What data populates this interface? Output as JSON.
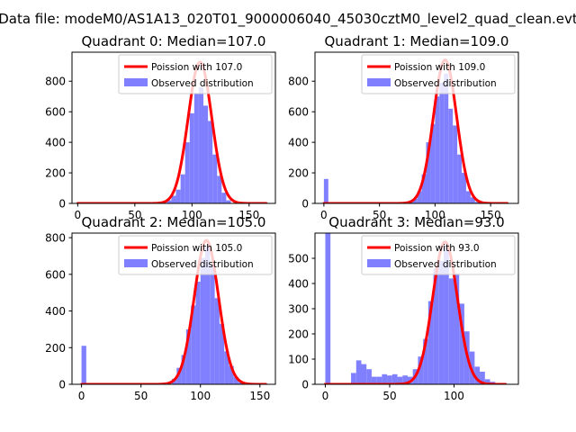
{
  "figure_title": "Data file: modeM0/AS1A13_020T01_9000006040_45030cztM0_level2_quad_clean.evt",
  "colors": {
    "observed": "#8080ff",
    "poisson": "#ff0000"
  },
  "chart_data": [
    {
      "type": "bar",
      "title": "Quadrant 0: Median=107.0",
      "median": 107.0,
      "xlim": [
        -5,
        173
      ],
      "ylim": [
        0,
        990
      ],
      "xticks": [
        0,
        50,
        100,
        150
      ],
      "yticks": [
        0,
        200,
        400,
        600,
        800
      ],
      "legend": {
        "placement": "top-right",
        "entries": [
          "Poission with 107.0",
          "Observed distribution"
        ]
      },
      "series": [
        {
          "name": "Poission with 107.0",
          "type": "line",
          "mean": 107.0,
          "peak": 925,
          "x_range": [
            0,
            165
          ]
        },
        {
          "name": "Observed distribution",
          "type": "hist",
          "bin_width": 4,
          "bin_starts": [
            78,
            82,
            86,
            90,
            94,
            98,
            102,
            106,
            110,
            114,
            118,
            122,
            126,
            130
          ],
          "counts": [
            20,
            50,
            90,
            190,
            400,
            590,
            720,
            760,
            640,
            540,
            320,
            180,
            70,
            20
          ]
        }
      ]
    },
    {
      "type": "bar",
      "title": "Quadrant 1: Median=109.0",
      "median": 109.0,
      "xlim": [
        -8,
        175
      ],
      "ylim": [
        0,
        990
      ],
      "xticks": [
        0,
        50,
        100,
        150
      ],
      "yticks": [
        0,
        200,
        400,
        600,
        800
      ],
      "legend": {
        "placement": "top-right",
        "entries": [
          "Poission with 109.0",
          "Observed distribution"
        ]
      },
      "series": [
        {
          "name": "Poission with 109.0",
          "type": "line",
          "mean": 109.0,
          "peak": 940,
          "x_range": [
            0,
            165
          ]
        },
        {
          "name": "Observed distribution",
          "type": "hist",
          "bin_width": 4,
          "bin_starts": [
            0,
            76,
            80,
            84,
            88,
            92,
            96,
            100,
            104,
            108,
            112,
            116,
            120,
            124,
            128,
            132,
            136
          ],
          "counts": [
            160,
            10,
            30,
            80,
            190,
            400,
            520,
            700,
            790,
            850,
            620,
            510,
            320,
            200,
            80,
            40,
            10
          ]
        }
      ]
    },
    {
      "type": "bar",
      "title": "Quadrant 2: Median=105.0",
      "median": 105.0,
      "xlim": [
        -8,
        163
      ],
      "ylim": [
        0,
        825
      ],
      "xticks": [
        0,
        50,
        100,
        150
      ],
      "yticks": [
        0,
        200,
        400,
        600,
        800
      ],
      "legend": {
        "placement": "top-right",
        "entries": [
          "Poission with 105.0",
          "Observed distribution"
        ]
      },
      "series": [
        {
          "name": "Poission with 105.0",
          "type": "line",
          "mean": 105.0,
          "peak": 785,
          "x_range": [
            0,
            155
          ]
        },
        {
          "name": "Observed distribution",
          "type": "hist",
          "bin_width": 4,
          "bin_starts": [
            0,
            76,
            80,
            84,
            88,
            92,
            96,
            100,
            104,
            108,
            112,
            116,
            120,
            124,
            128,
            132
          ],
          "counts": [
            210,
            30,
            90,
            160,
            300,
            430,
            560,
            690,
            750,
            650,
            470,
            330,
            180,
            100,
            40,
            10
          ]
        }
      ]
    },
    {
      "type": "bar",
      "title": "Quadrant 3: Median=93.0",
      "median": 93.0,
      "xlim": [
        -8,
        150
      ],
      "ylim": [
        0,
        600
      ],
      "xticks": [
        0,
        50,
        100
      ],
      "yticks": [
        0,
        100,
        200,
        300,
        400,
        500
      ],
      "legend": {
        "placement": "top-right",
        "entries": [
          "Poission with 93.0",
          "Observed distribution"
        ]
      },
      "series": [
        {
          "name": "Poission with 93.0",
          "type": "line",
          "mean": 93.0,
          "peak": 565,
          "x_range": [
            0,
            140
          ]
        },
        {
          "name": "Observed distribution",
          "type": "hist",
          "bin_width": 4,
          "bin_starts": [
            0,
            20,
            24,
            28,
            32,
            36,
            40,
            44,
            48,
            52,
            56,
            60,
            64,
            68,
            72,
            76,
            80,
            84,
            88,
            92,
            96,
            100,
            104,
            108,
            112,
            116,
            120,
            124,
            128
          ],
          "counts": [
            600,
            45,
            95,
            80,
            60,
            30,
            30,
            40,
            35,
            40,
            30,
            35,
            30,
            60,
            110,
            180,
            330,
            460,
            490,
            550,
            420,
            440,
            320,
            210,
            130,
            70,
            50,
            20,
            10
          ]
        }
      ]
    }
  ]
}
